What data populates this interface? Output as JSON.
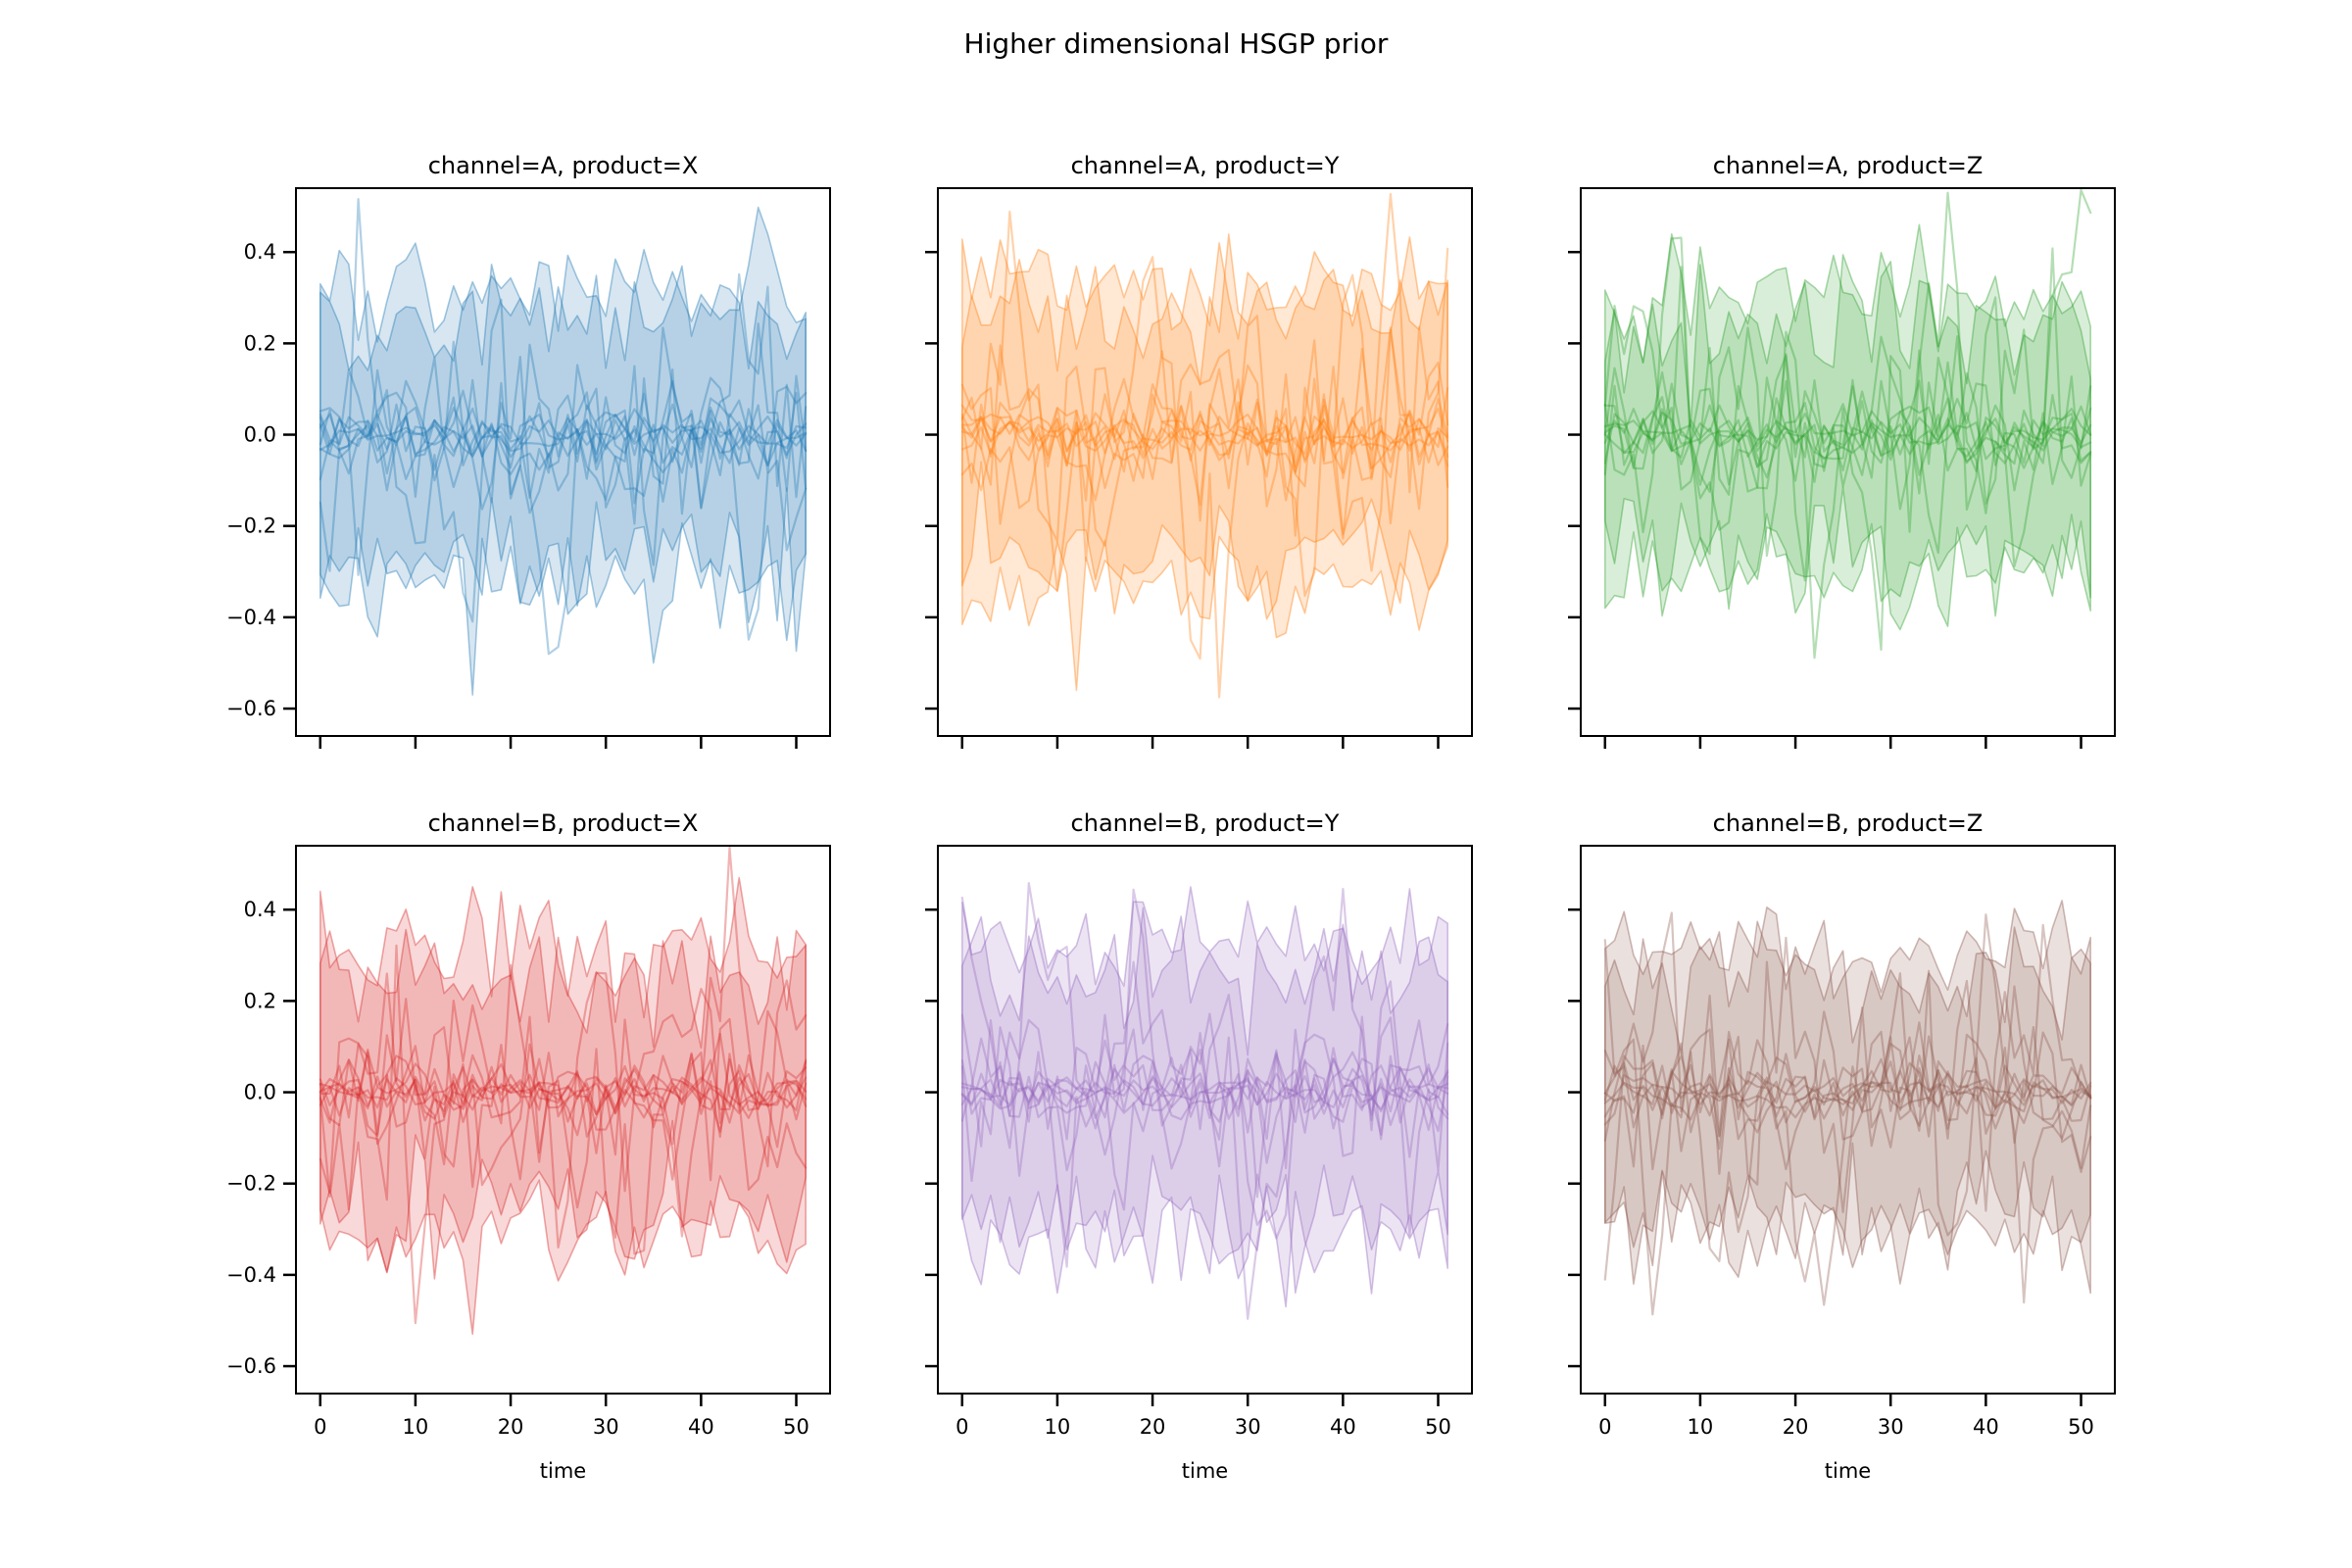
{
  "figure": {
    "suptitle": "Higher dimensional HSGP prior",
    "background_color": "#ffffff",
    "text_color": "#000000"
  },
  "chart_data": [
    {
      "type": "line",
      "title": "channel=A, product=X",
      "channel": "A",
      "product": "X",
      "color": "#1f77b4",
      "seed": 101,
      "x": {
        "start": 0,
        "end": 51,
        "n_points": 52
      },
      "xlim": [
        -2.55,
        53.55
      ],
      "ylim": [
        -0.66,
        0.54
      ],
      "xticks": [
        0,
        10,
        20,
        30,
        40,
        50
      ],
      "yticks": [
        0.4,
        0.2,
        0.0,
        -0.2,
        -0.4,
        -0.6
      ],
      "show_ytick_labels": true,
      "show_xtick_labels": false,
      "show_xlabel": false,
      "n_sample_lines": 10,
      "line_sds": [
        0.02,
        0.025,
        0.03,
        0.035,
        0.045,
        0.055,
        0.07,
        0.1,
        0.14,
        0.18
      ],
      "bands": [
        {
          "upper_mean": 0.32,
          "lower_mean": -0.32,
          "noise_sd": 0.055
        },
        {
          "upper_mean": 0.25,
          "lower_mean": -0.27,
          "noise_sd": 0.07
        }
      ],
      "spikes": [
        {
          "t": 16,
          "y": -0.57
        },
        {
          "t": 35,
          "y": -0.5
        },
        {
          "t": 47,
          "y": 0.44
        }
      ],
      "fill_alpha": 0.18,
      "line_alpha": 0.35
    },
    {
      "type": "line",
      "title": "channel=A, product=Y",
      "channel": "A",
      "product": "Y",
      "color": "#ff7f0e",
      "seed": 202,
      "x": {
        "start": 0,
        "end": 51,
        "n_points": 52
      },
      "xlim": [
        -2.55,
        53.55
      ],
      "ylim": [
        -0.66,
        0.54
      ],
      "xticks": [
        0,
        10,
        20,
        30,
        40,
        50
      ],
      "yticks": [
        0.4,
        0.2,
        0.0,
        -0.2,
        -0.4,
        -0.6
      ],
      "show_ytick_labels": false,
      "show_xtick_labels": false,
      "show_xlabel": false,
      "n_sample_lines": 10,
      "line_sds": [
        0.02,
        0.025,
        0.03,
        0.035,
        0.045,
        0.055,
        0.07,
        0.1,
        0.14,
        0.18
      ],
      "bands": [
        {
          "upper_mean": 0.32,
          "lower_mean": -0.32,
          "noise_sd": 0.055
        },
        {
          "upper_mean": 0.25,
          "lower_mean": -0.27,
          "noise_sd": 0.07
        }
      ],
      "spikes": [
        {
          "t": 12,
          "y": -0.56
        },
        {
          "t": 27,
          "y": 0.42
        },
        {
          "t": 33,
          "y": -0.43
        }
      ],
      "fill_alpha": 0.18,
      "line_alpha": 0.35
    },
    {
      "type": "line",
      "title": "channel=A, product=Z",
      "channel": "A",
      "product": "Z",
      "color": "#2ca02c",
      "seed": 303,
      "x": {
        "start": 0,
        "end": 51,
        "n_points": 52
      },
      "xlim": [
        -2.55,
        53.55
      ],
      "ylim": [
        -0.66,
        0.54
      ],
      "xticks": [
        0,
        10,
        20,
        30,
        40,
        50
      ],
      "yticks": [
        0.4,
        0.2,
        0.0,
        -0.2,
        -0.4,
        -0.6
      ],
      "show_ytick_labels": false,
      "show_xtick_labels": false,
      "show_xlabel": false,
      "n_sample_lines": 10,
      "line_sds": [
        0.02,
        0.025,
        0.03,
        0.035,
        0.045,
        0.055,
        0.07,
        0.1,
        0.14,
        0.18
      ],
      "bands": [
        {
          "upper_mean": 0.31,
          "lower_mean": -0.3,
          "noise_sd": 0.055
        },
        {
          "upper_mean": 0.25,
          "lower_mean": -0.26,
          "noise_sd": 0.07
        }
      ],
      "spikes": [
        {
          "t": 33,
          "y": 0.46
        },
        {
          "t": 36,
          "y": -0.42
        }
      ],
      "fill_alpha": 0.18,
      "line_alpha": 0.35
    },
    {
      "type": "line",
      "title": "channel=B, product=X",
      "channel": "B",
      "product": "X",
      "color": "#d62728",
      "seed": 404,
      "x": {
        "start": 0,
        "end": 51,
        "n_points": 52
      },
      "xlim": [
        -2.55,
        53.55
      ],
      "ylim": [
        -0.66,
        0.54
      ],
      "xticks": [
        0,
        10,
        20,
        30,
        40,
        50
      ],
      "yticks": [
        0.4,
        0.2,
        0.0,
        -0.2,
        -0.4,
        -0.6
      ],
      "xlabel": "time",
      "show_ytick_labels": true,
      "show_xtick_labels": true,
      "show_xlabel": true,
      "n_sample_lines": 10,
      "line_sds": [
        0.02,
        0.025,
        0.03,
        0.035,
        0.045,
        0.055,
        0.07,
        0.1,
        0.14,
        0.18
      ],
      "bands": [
        {
          "upper_mean": 0.32,
          "lower_mean": -0.32,
          "noise_sd": 0.055
        },
        {
          "upper_mean": 0.25,
          "lower_mean": -0.27,
          "noise_sd": 0.07
        }
      ],
      "spikes": [
        {
          "t": 0,
          "y": 0.44
        },
        {
          "t": 16,
          "y": 0.45
        },
        {
          "t": 16,
          "y": -0.53
        },
        {
          "t": 44,
          "y": 0.47
        }
      ],
      "fill_alpha": 0.18,
      "line_alpha": 0.35
    },
    {
      "type": "line",
      "title": "channel=B, product=Y",
      "channel": "B",
      "product": "Y",
      "color": "#9467bd",
      "seed": 505,
      "x": {
        "start": 0,
        "end": 51,
        "n_points": 52
      },
      "xlim": [
        -2.55,
        53.55
      ],
      "ylim": [
        -0.66,
        0.54
      ],
      "xticks": [
        0,
        10,
        20,
        30,
        40,
        50
      ],
      "yticks": [
        0.4,
        0.2,
        0.0,
        -0.2,
        -0.4,
        -0.6
      ],
      "xlabel": "time",
      "show_ytick_labels": false,
      "show_xtick_labels": true,
      "show_xlabel": true,
      "n_sample_lines": 10,
      "line_sds": [
        0.02,
        0.025,
        0.03,
        0.035,
        0.045,
        0.055,
        0.07,
        0.1,
        0.14,
        0.18
      ],
      "bands": [
        {
          "upper_mean": 0.32,
          "lower_mean": -0.32,
          "noise_sd": 0.055
        },
        {
          "upper_mean": 0.25,
          "lower_mean": -0.27,
          "noise_sd": 0.07
        }
      ],
      "spikes": [
        {
          "t": 24,
          "y": 0.45
        },
        {
          "t": 34,
          "y": -0.47
        },
        {
          "t": 10,
          "y": -0.44
        }
      ],
      "fill_alpha": 0.18,
      "line_alpha": 0.35
    },
    {
      "type": "line",
      "title": "channel=B, product=Z",
      "channel": "B",
      "product": "Z",
      "color": "#8c564b",
      "seed": 606,
      "x": {
        "start": 0,
        "end": 51,
        "n_points": 52
      },
      "xlim": [
        -2.55,
        53.55
      ],
      "ylim": [
        -0.66,
        0.54
      ],
      "xticks": [
        0,
        10,
        20,
        30,
        40,
        50
      ],
      "yticks": [
        0.4,
        0.2,
        0.0,
        -0.2,
        -0.4,
        -0.6
      ],
      "xlabel": "time",
      "show_ytick_labels": false,
      "show_xtick_labels": true,
      "show_xlabel": true,
      "n_sample_lines": 10,
      "line_sds": [
        0.02,
        0.025,
        0.03,
        0.035,
        0.045,
        0.055,
        0.07,
        0.1,
        0.14,
        0.18
      ],
      "bands": [
        {
          "upper_mean": 0.32,
          "lower_mean": -0.31,
          "noise_sd": 0.055
        },
        {
          "upper_mean": 0.25,
          "lower_mean": -0.26,
          "noise_sd": 0.07
        }
      ],
      "spikes": [
        {
          "t": 48,
          "y": 0.42
        },
        {
          "t": 51,
          "y": -0.44
        },
        {
          "t": 3,
          "y": -0.42
        }
      ],
      "fill_alpha": 0.18,
      "line_alpha": 0.35
    }
  ]
}
